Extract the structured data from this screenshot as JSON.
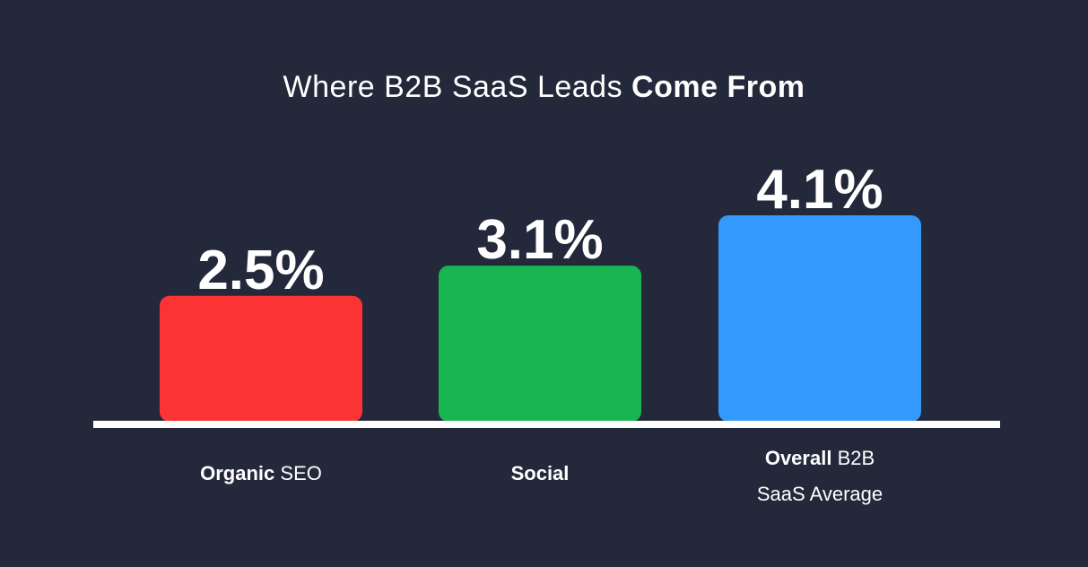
{
  "title": {
    "regular": "Where B2B SaaS Leads",
    "bold": "Come From"
  },
  "categories": [
    {
      "bold": "Organic",
      "regular": "SEO",
      "line2": ""
    },
    {
      "bold": "Social",
      "regular": "",
      "line2": ""
    },
    {
      "bold": "Overall",
      "regular": "B2B",
      "line2": "SaaS Average"
    }
  ],
  "chart_data": {
    "type": "bar",
    "title": "Where B2B SaaS Leads Come From",
    "categories": [
      "Organic SEO",
      "Social",
      "Overall B2B SaaS Average"
    ],
    "values": [
      2.5,
      3.1,
      4.1
    ],
    "value_labels": [
      "2.5%",
      "3.1%",
      "4.1%"
    ],
    "unit": "%",
    "colors": [
      "#fc3333",
      "#1ab553",
      "#3399fb"
    ],
    "ylim": [
      0,
      4.1
    ],
    "grid": false,
    "legend": "none"
  },
  "colors": {
    "background": "#23283a",
    "baseline": "#ffffff",
    "text": "#ffffff"
  }
}
